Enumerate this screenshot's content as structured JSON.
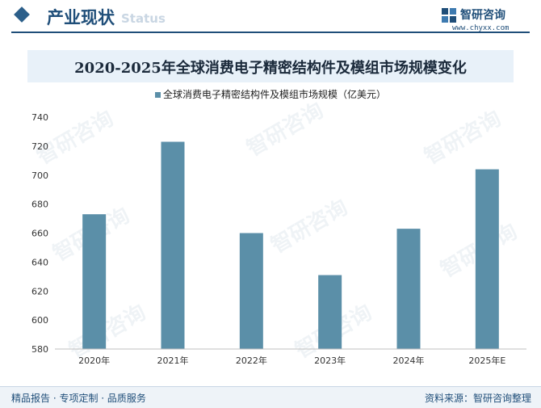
{
  "header": {
    "section_title": "产业现状",
    "section_en": "Status"
  },
  "brand": {
    "name": "智研咨询",
    "url": "www.chyxx.com",
    "logo_icon": "chyxx-logo-icon"
  },
  "watermark_text": "智研咨询",
  "footer": {
    "slogan": "精品报告 · 专项定制 · 品质服务",
    "source": "资料来源：智研咨询整理"
  },
  "colors": {
    "bar": "#5b8fa8",
    "accent": "#1f4e79"
  },
  "chart_data": {
    "type": "bar",
    "title": "2020-2025年全球消费电子精密结构件及模组市场规模变化",
    "categories": [
      "2020年",
      "2021年",
      "2022年",
      "2023年",
      "2024年",
      "2025年E"
    ],
    "series": [
      {
        "name": "全球消费电子精密结构件及模组市场规模（亿美元）",
        "values": [
          673,
          723,
          660,
          631,
          663,
          704
        ]
      }
    ],
    "ylim": [
      580,
      740
    ],
    "yticks": [
      580,
      600,
      620,
      640,
      660,
      680,
      700,
      720,
      740
    ],
    "grid": false,
    "legend_position": "top-center"
  }
}
